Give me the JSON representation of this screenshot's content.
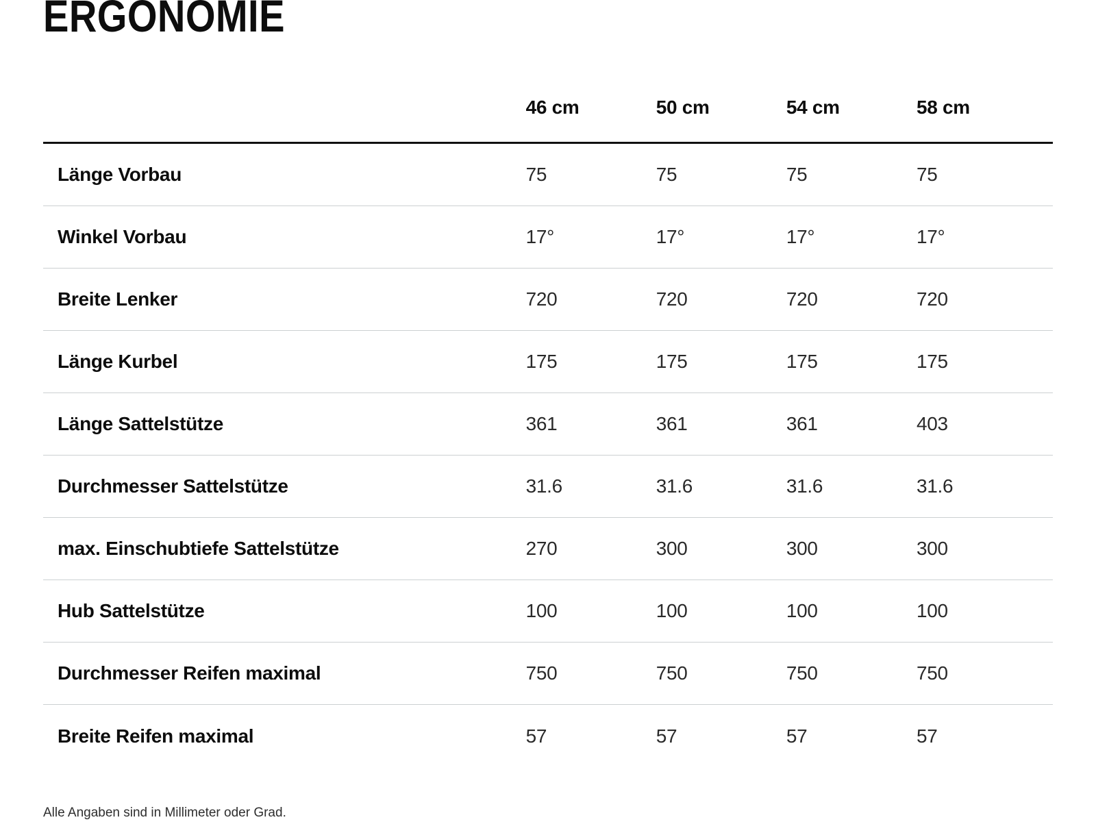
{
  "page": {
    "title": "ERGONOMIE",
    "footnote": "Alle Angaben sind in Millimeter oder Grad."
  },
  "table": {
    "columns": [
      "46 cm",
      "50 cm",
      "54 cm",
      "58 cm"
    ],
    "rows": [
      {
        "label": "Länge Vorbau",
        "values": [
          "75",
          "75",
          "75",
          "75"
        ]
      },
      {
        "label": "Winkel Vorbau",
        "values": [
          "17°",
          "17°",
          "17°",
          "17°"
        ]
      },
      {
        "label": "Breite Lenker",
        "values": [
          "720",
          "720",
          "720",
          "720"
        ]
      },
      {
        "label": "Länge Kurbel",
        "values": [
          "175",
          "175",
          "175",
          "175"
        ]
      },
      {
        "label": "Länge Sattelstütze",
        "values": [
          "361",
          "361",
          "361",
          "403"
        ]
      },
      {
        "label": "Durchmesser Sattelstütze",
        "values": [
          "31.6",
          "31.6",
          "31.6",
          "31.6"
        ]
      },
      {
        "label": "max. Einschubtiefe Sattelstütze",
        "values": [
          "270",
          "300",
          "300",
          "300"
        ]
      },
      {
        "label": "Hub Sattelstütze",
        "values": [
          "100",
          "100",
          "100",
          "100"
        ]
      },
      {
        "label": "Durchmesser Reifen maximal",
        "values": [
          "750",
          "750",
          "750",
          "750"
        ]
      },
      {
        "label": "Breite Reifen maximal",
        "values": [
          "57",
          "57",
          "57",
          "57"
        ]
      }
    ]
  },
  "colors": {
    "text": "#111111",
    "separator_light": "#ccd0d2",
    "separator_heavy": "#101010",
    "background": "#ffffff"
  }
}
